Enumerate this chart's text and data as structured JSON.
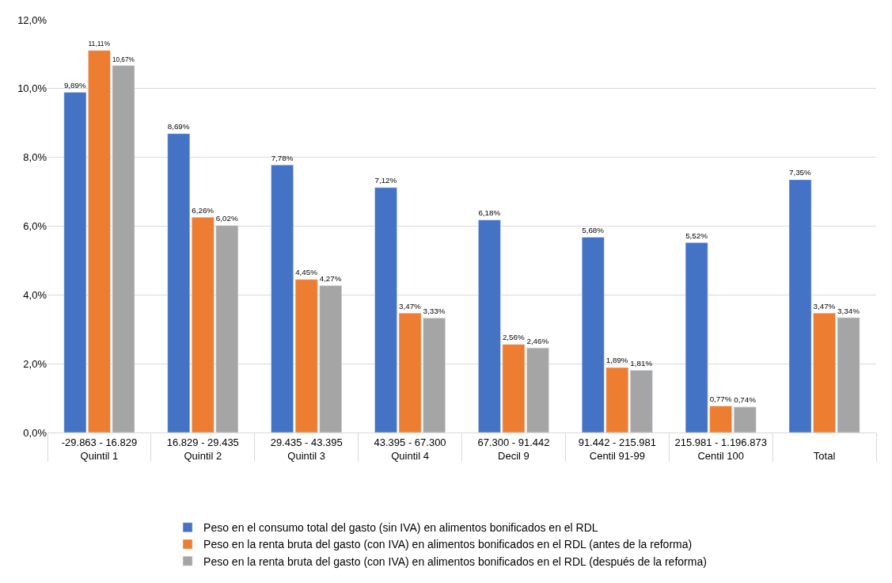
{
  "chart_data": {
    "type": "bar",
    "categories": [
      "-29.863 - 16.829\nQuintil 1",
      "16.829 - 29.435\nQuintil 2",
      "29.435 - 43.395\nQuintil 3",
      "43.395 - 67.300\nQuintil 4",
      "67.300 - 91.442\nDecil 9",
      "91.442 - 215.981\nCentil 91-99",
      "215.981 - 1.196.873\nCentil 100",
      "Total"
    ],
    "series": [
      {
        "name": "Peso en el consumo total del gasto (sin IVA) en alimentos bonificados en el RDL",
        "color": "#4472c4",
        "values": [
          9.89,
          8.69,
          7.78,
          7.12,
          6.18,
          5.68,
          5.52,
          7.35
        ],
        "value_labels": [
          "9,89%",
          "8,69%",
          "7,78%",
          "7,12%",
          "6,18%",
          "5,68%",
          "5,52%",
          "7,35%"
        ]
      },
      {
        "name": "Peso en la renta bruta del gasto (con IVA) en alimentos bonificados en el RDL (antes de la reforma)",
        "color": "#ed7d31",
        "values": [
          11.11,
          6.26,
          4.45,
          3.47,
          2.56,
          1.89,
          0.77,
          3.47
        ],
        "value_labels": [
          "11,11%",
          "6,26%",
          "4,45%",
          "3,47%",
          "2,56%",
          "1,89%",
          "0,77%",
          "3,47%"
        ]
      },
      {
        "name": "Peso en la renta bruta del gasto (con IVA) en alimentos bonificados en el RDL (después de la reforma)",
        "color": "#a5a5a5",
        "values": [
          10.67,
          6.02,
          4.27,
          3.33,
          2.46,
          1.81,
          0.74,
          3.34
        ],
        "value_labels": [
          "10,67%",
          "6,02%",
          "4,27%",
          "3,33%",
          "2,46%",
          "1,81%",
          "0,74%",
          "3,34%"
        ]
      }
    ],
    "ylim": [
      0,
      12
    ],
    "yticks": [
      {
        "value": 0,
        "label": "0,0%"
      },
      {
        "value": 2,
        "label": "2,0%"
      },
      {
        "value": 4,
        "label": "4,0%"
      },
      {
        "value": 6,
        "label": "6,0%"
      },
      {
        "value": 8,
        "label": "8,0%"
      },
      {
        "value": 10,
        "label": "10,0%"
      },
      {
        "value": 12,
        "label": "12,0%"
      }
    ],
    "grid": "y",
    "legend": "bottom"
  }
}
